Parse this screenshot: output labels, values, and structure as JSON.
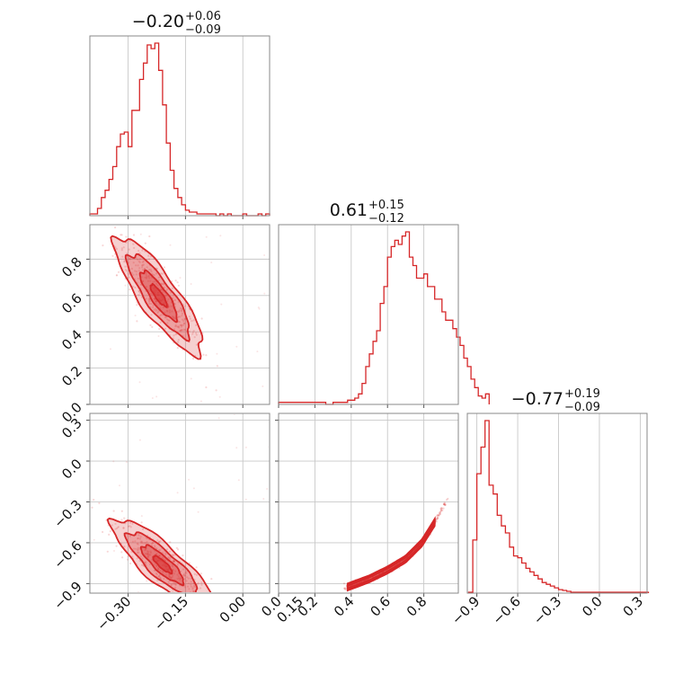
{
  "chart_data": {
    "type": "corner",
    "color": "#d62728",
    "grid": true,
    "titles": [
      {
        "median": "−0.20",
        "plus": "+0.06",
        "minus": "−0.09"
      },
      {
        "median": "0.61",
        "plus": "+0.15",
        "minus": "−0.12"
      },
      {
        "median": "−0.77",
        "plus": "+0.19",
        "minus": "−0.09"
      }
    ],
    "axes": [
      {
        "range": [
          -0.4,
          0.07
        ],
        "ticks": [
          -0.3,
          -0.15,
          0.0,
          0.15
        ],
        "tick_labels": [
          "−0.30",
          "−0.15",
          "0.00",
          "0.15"
        ]
      },
      {
        "range": [
          0.0,
          0.99
        ],
        "ticks": [
          0.0,
          0.2,
          0.4,
          0.6,
          0.8
        ],
        "tick_labels": [
          "0.0",
          "0.2",
          "0.4",
          "0.6",
          "0.8"
        ]
      },
      {
        "range": [
          -0.97,
          0.35
        ],
        "ticks": [
          -0.9,
          -0.6,
          -0.3,
          0.0,
          0.3
        ],
        "tick_labels": [
          "−0.9",
          "−0.6",
          "−0.3",
          "0.0",
          "0.3"
        ]
      }
    ],
    "histograms": [
      {
        "param": 0,
        "x_start": -0.4,
        "bin_width": 0.01,
        "counts": [
          1,
          1,
          4,
          10,
          14,
          20,
          27,
          38,
          45,
          46,
          38,
          58,
          58,
          75,
          84,
          94,
          92,
          95,
          80,
          61,
          40,
          25,
          15,
          10,
          6,
          3,
          2,
          2,
          1,
          1,
          1,
          1,
          1,
          0,
          1,
          0,
          1,
          0,
          0,
          0,
          1,
          0,
          0,
          0,
          1,
          0,
          1
        ]
      },
      {
        "param": 1,
        "x_start": 0.0,
        "bin_width": 0.02,
        "counts": [
          1,
          1,
          1,
          1,
          1,
          1,
          1,
          1,
          1,
          1,
          1,
          1,
          1,
          0,
          0,
          1,
          1,
          1,
          1,
          2,
          2,
          3,
          5,
          10,
          18,
          24,
          30,
          35,
          48,
          56,
          70,
          75,
          78,
          76,
          80,
          82,
          70,
          66,
          60,
          60,
          62,
          56,
          56,
          50,
          50,
          44,
          40,
          40,
          36,
          32,
          28,
          22,
          18,
          12,
          8,
          4,
          3,
          5
        ]
      },
      {
        "param": 2,
        "x_start": -0.96,
        "bin_width": 0.03,
        "counts": [
          1,
          60,
          135,
          165,
          195,
          122,
          112,
          88,
          76,
          68,
          52,
          42,
          40,
          34,
          28,
          24,
          20,
          16,
          12,
          10,
          8,
          6,
          4,
          3,
          2,
          1,
          1,
          1,
          1,
          1,
          1,
          1,
          1,
          1,
          1,
          1,
          1,
          1,
          1,
          1,
          1,
          1,
          1,
          1
        ]
      }
    ],
    "pairs": [
      {
        "x_param": 0,
        "y_param": 1,
        "mean": [
          -0.22,
          0.6
        ],
        "std": [
          0.048,
          0.135
        ],
        "corr": -0.85
      },
      {
        "x_param": 0,
        "y_param": 2,
        "mean": [
          -0.21,
          -0.76
        ],
        "std": [
          0.055,
          0.14
        ],
        "corr": -0.85
      },
      {
        "x_param": 1,
        "y_param": 2,
        "relation": "curved",
        "x_points": [
          0.38,
          0.5,
          0.6,
          0.7,
          0.79,
          0.86
        ],
        "y_points": [
          -0.925,
          -0.865,
          -0.8,
          -0.72,
          -0.6,
          -0.45
        ]
      }
    ]
  }
}
